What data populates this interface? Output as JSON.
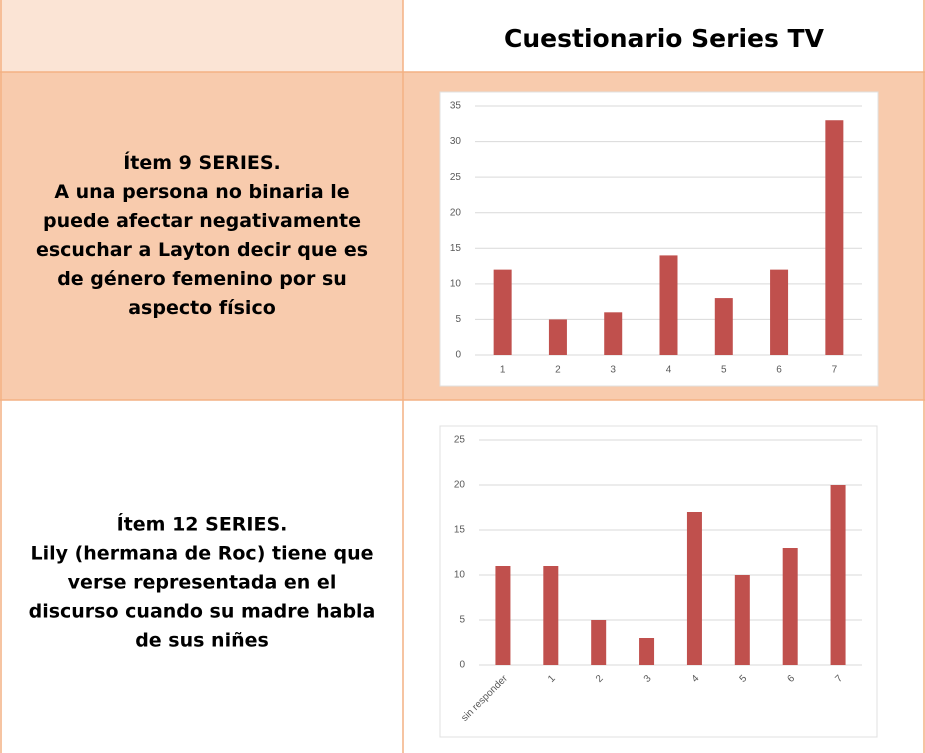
{
  "table": {
    "header": "Cuestionario Series TV",
    "rows": [
      {
        "lines": [
          "Ítem 9 SERIES.",
          "A una persona no binaria le",
          "puede afectar negativamente",
          "escuchar a Layton decir que es",
          "de género femenino por su",
          "aspecto físico"
        ]
      },
      {
        "lines": [
          "Ítem 12 SERIES.",
          "Lily (hermana de Roc) tiene que",
          "verse representada en el",
          "discurso cuando su madre habla",
          "de sus niñes"
        ]
      }
    ]
  },
  "chart_data": [
    {
      "type": "bar",
      "categories": [
        "1",
        "2",
        "3",
        "4",
        "5",
        "6",
        "7"
      ],
      "values": [
        12,
        5,
        6,
        14,
        8,
        12,
        33
      ],
      "color": "#c0504d",
      "ylim": [
        0,
        35
      ],
      "yticks": [
        0,
        5,
        10,
        15,
        20,
        25,
        30,
        35
      ],
      "grid": true
    },
    {
      "type": "bar",
      "categories": [
        "sin responder",
        "1",
        "2",
        "3",
        "4",
        "5",
        "6",
        "7"
      ],
      "values": [
        11,
        11,
        5,
        3,
        17,
        10,
        13,
        20
      ],
      "color": "#c0504d",
      "ylim": [
        0,
        25
      ],
      "yticks": [
        0,
        5,
        10,
        15,
        20,
        25
      ],
      "grid": true,
      "rotated_labels": true
    }
  ]
}
